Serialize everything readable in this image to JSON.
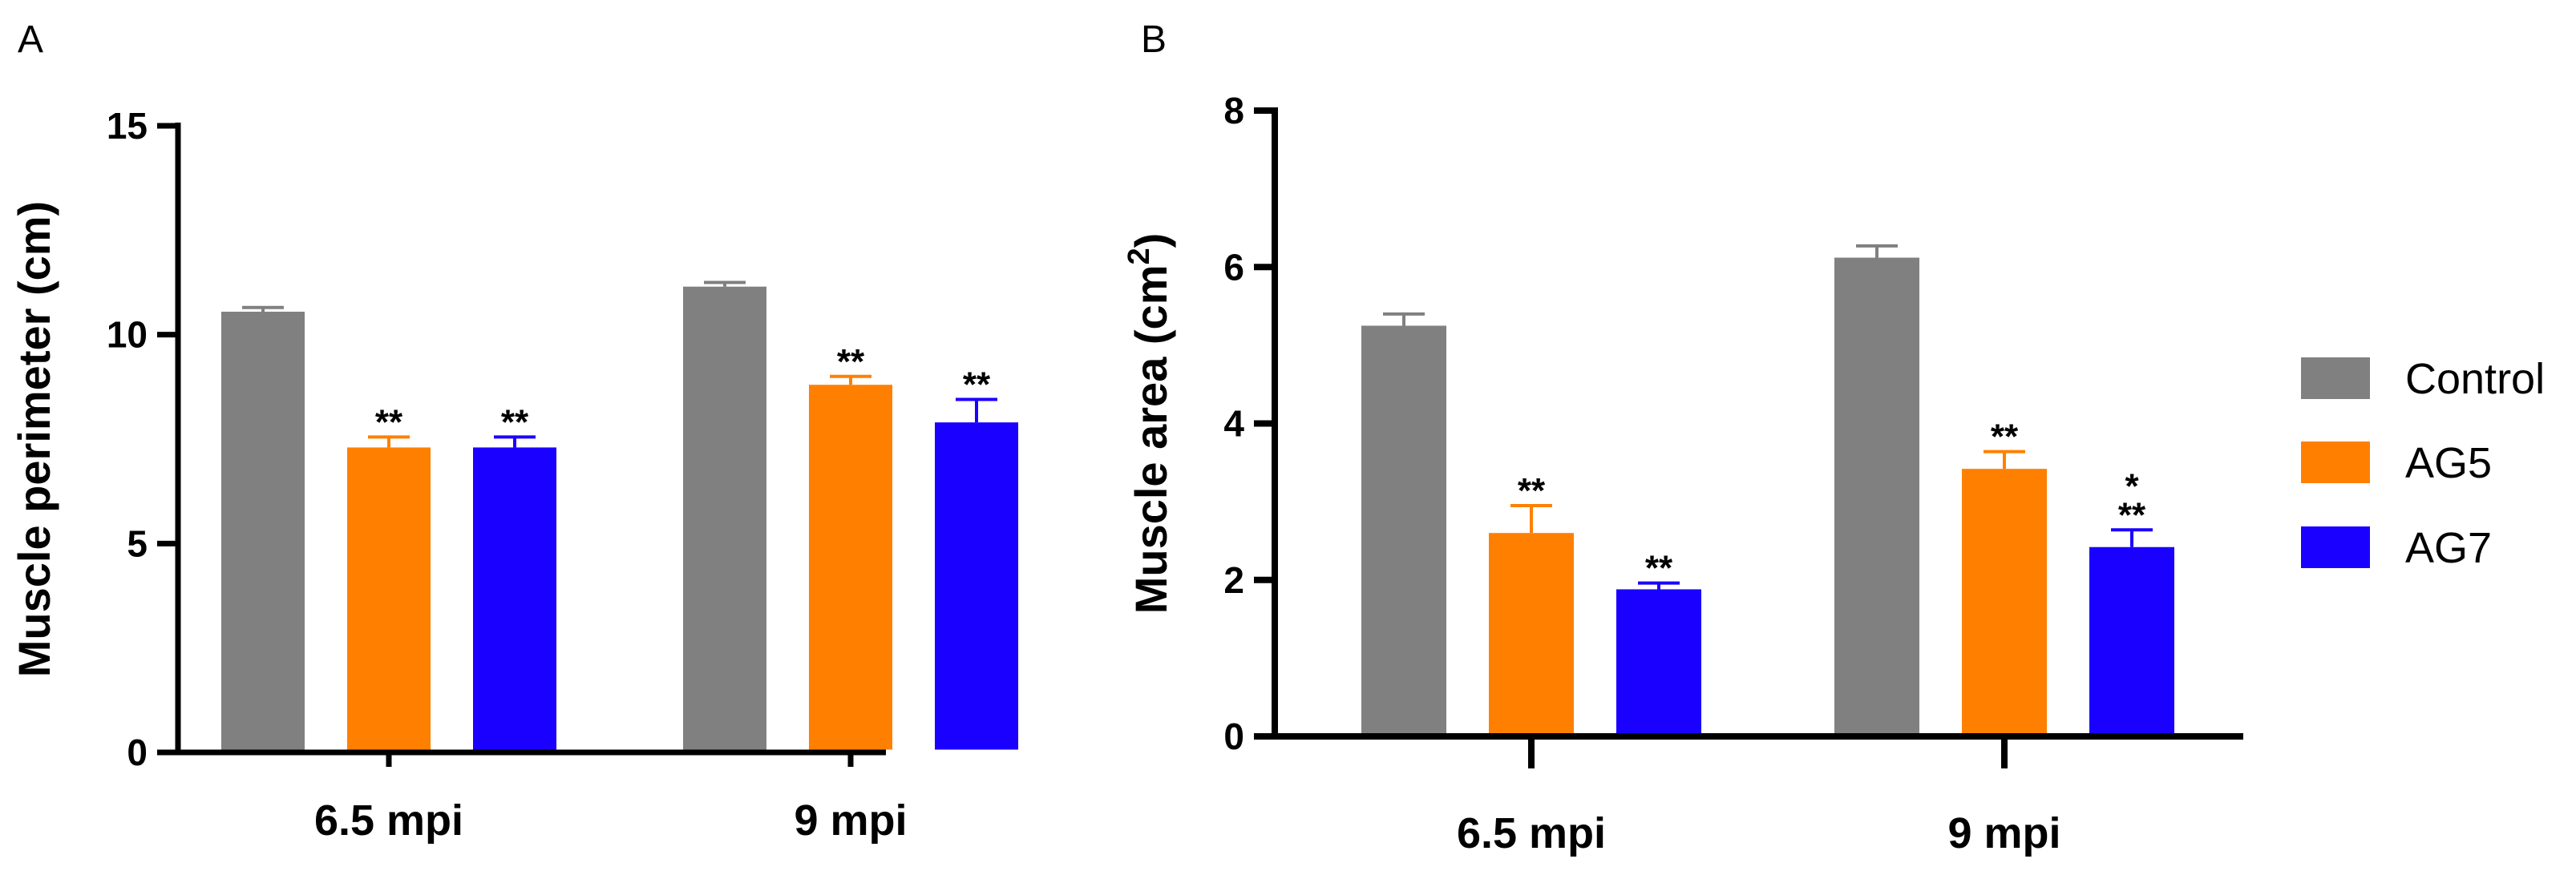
{
  "colors": {
    "Control": "#808080",
    "AG5": "#ff8000",
    "AG7": "#1a00ff"
  },
  "legend": {
    "entries": [
      "Control",
      "AG5",
      "AG7"
    ]
  },
  "chart_data": [
    {
      "panel_label": "A",
      "type": "bar",
      "categories": [
        "6.5 mpi",
        "9 mpi"
      ],
      "ylabel": "Muscle perimeter (cm)",
      "xlabel": "",
      "ylim": [
        0,
        15
      ],
      "yticks": [
        0,
        5,
        10,
        15
      ],
      "series": [
        {
          "name": "Control",
          "values": [
            10.55,
            11.15
          ],
          "errors": [
            0.1,
            0.1
          ],
          "sig": [
            "",
            ""
          ]
        },
        {
          "name": "AG5",
          "values": [
            7.3,
            8.8
          ],
          "errors": [
            0.25,
            0.2
          ],
          "sig": [
            "**",
            "**"
          ]
        },
        {
          "name": "AG7",
          "values": [
            7.3,
            7.9
          ],
          "errors": [
            0.25,
            0.55
          ],
          "sig": [
            "**",
            "**"
          ]
        }
      ]
    },
    {
      "panel_label": "B",
      "type": "bar",
      "categories": [
        "6.5 mpi",
        "9 mpi"
      ],
      "ylabel": "Muscle area (cm²)",
      "xlabel": "",
      "ylim": [
        0,
        8
      ],
      "yticks": [
        0,
        2,
        4,
        6,
        8
      ],
      "series": [
        {
          "name": "Control",
          "values": [
            5.25,
            6.12
          ],
          "errors": [
            0.15,
            0.15
          ],
          "sig": [
            "",
            ""
          ]
        },
        {
          "name": "AG5",
          "values": [
            2.6,
            3.42
          ],
          "errors": [
            0.35,
            0.22
          ],
          "sig": [
            "**",
            "**"
          ]
        },
        {
          "name": "AG7",
          "values": [
            1.88,
            2.42
          ],
          "errors": [
            0.08,
            0.22
          ],
          "sig": [
            "**",
            "*\n**"
          ]
        }
      ]
    }
  ]
}
